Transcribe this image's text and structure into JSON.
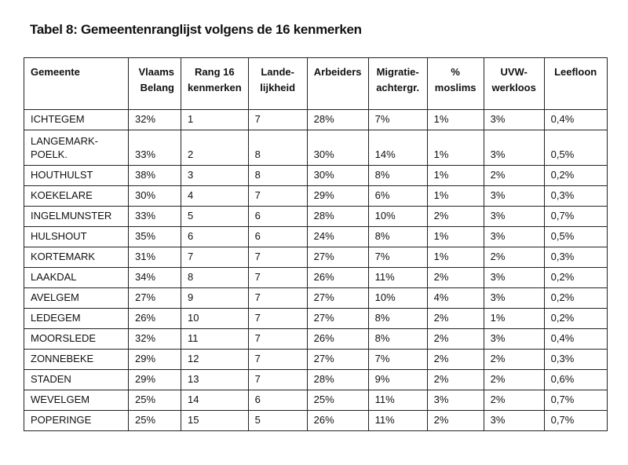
{
  "title": "Tabel 8: Gemeentenranglijst volgens de 16 kenmerken",
  "table": {
    "header": [
      [
        "Gemeente"
      ],
      [
        "Vlaams",
        "Belang"
      ],
      [
        "Rang 16",
        "kenmerken"
      ],
      [
        "Lande-",
        "lijkheid"
      ],
      [
        "Arbeiders"
      ],
      [
        "Migratie-",
        "achtergr."
      ],
      [
        "%",
        "moslims"
      ],
      [
        "UVW-",
        "werkloos"
      ],
      [
        "Leefloon"
      ]
    ],
    "rows": [
      [
        "ICHTEGEM",
        "32%",
        "1",
        "7",
        "28%",
        "7%",
        "1%",
        "3%",
        "0,4%"
      ],
      [
        [
          "LANGEMARK-",
          "POELK."
        ],
        "33%",
        "2",
        "8",
        "30%",
        "14%",
        "1%",
        "3%",
        "0,5%"
      ],
      [
        "HOUTHULST",
        "38%",
        "3",
        "8",
        "30%",
        "8%",
        "1%",
        "2%",
        "0,2%"
      ],
      [
        "KOEKELARE",
        "30%",
        "4",
        "7",
        "29%",
        "6%",
        "1%",
        "3%",
        "0,3%"
      ],
      [
        "INGELMUNSTER",
        "33%",
        "5",
        "6",
        "28%",
        "10%",
        "2%",
        "3%",
        "0,7%"
      ],
      [
        "HULSHOUT",
        "35%",
        "6",
        "6",
        "24%",
        "8%",
        "1%",
        "3%",
        "0,5%"
      ],
      [
        "KORTEMARK",
        "31%",
        "7",
        "7",
        "27%",
        "7%",
        "1%",
        "2%",
        "0,3%"
      ],
      [
        "LAAKDAL",
        "34%",
        "8",
        "7",
        "26%",
        "11%",
        "2%",
        "3%",
        "0,2%"
      ],
      [
        "AVELGEM",
        "27%",
        "9",
        "7",
        "27%",
        "10%",
        "4%",
        "3%",
        "0,2%"
      ],
      [
        "LEDEGEM",
        "26%",
        "10",
        "7",
        "27%",
        "8%",
        "2%",
        "1%",
        "0,2%"
      ],
      [
        "MOORSLEDE",
        "32%",
        "11",
        "7",
        "26%",
        "8%",
        "2%",
        "3%",
        "0,4%"
      ],
      [
        "ZONNEBEKE",
        "29%",
        "12",
        "7",
        "27%",
        "7%",
        "2%",
        "2%",
        "0,3%"
      ],
      [
        "STADEN",
        "29%",
        "13",
        "7",
        "28%",
        "9%",
        "2%",
        "2%",
        "0,6%"
      ],
      [
        "WEVELGEM",
        "25%",
        "14",
        "6",
        "25%",
        "11%",
        "3%",
        "2%",
        "0,7%"
      ],
      [
        "POPERINGE",
        "25%",
        "15",
        "5",
        "26%",
        "11%",
        "2%",
        "3%",
        "0,7%"
      ]
    ]
  }
}
